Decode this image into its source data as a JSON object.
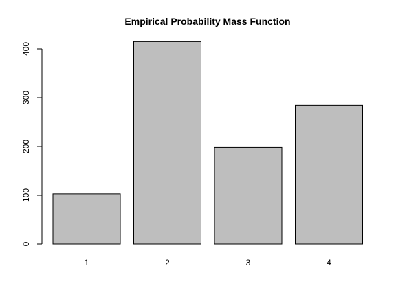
{
  "chart_data": {
    "type": "bar",
    "title": "Empirical Probability Mass Function",
    "xlabel": "",
    "ylabel": "",
    "categories": [
      "1",
      "2",
      "3",
      "4"
    ],
    "values": [
      103,
      415,
      198,
      284
    ],
    "ylim": [
      0,
      400
    ],
    "yticks": [
      0,
      100,
      200,
      300,
      400
    ],
    "grid": false,
    "legend": "none",
    "bar_color": "#bebebe",
    "border_color": "#000000"
  }
}
